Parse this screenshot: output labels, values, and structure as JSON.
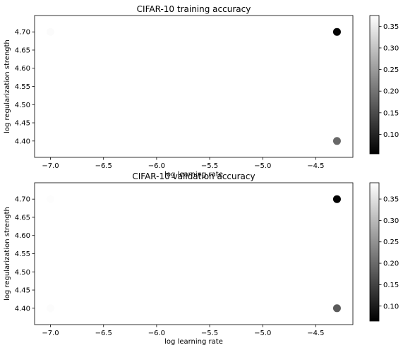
{
  "chart_data": [
    {
      "type": "scatter",
      "title": "CIFAR-10 training accuracy",
      "xlabel": "log learning rate",
      "ylabel": "log regularization strength",
      "xlim": [
        -7.15,
        -4.15
      ],
      "ylim": [
        4.355,
        4.745
      ],
      "xticks": [
        -7.0,
        -6.5,
        -6.0,
        -5.5,
        -5.0,
        -4.5
      ],
      "xtick_labels": [
        "−7.0",
        "−6.5",
        "−6.0",
        "−5.5",
        "−5.0",
        "−4.5"
      ],
      "yticks": [
        4.4,
        4.45,
        4.5,
        4.55,
        4.6,
        4.65,
        4.7
      ],
      "ytick_labels": [
        "4.40",
        "4.45",
        "4.50",
        "4.55",
        "4.60",
        "4.65",
        "4.70"
      ],
      "colormap": "gray",
      "color_range": [
        0.055,
        0.375
      ],
      "colorbar_ticks": [
        0.1,
        0.15,
        0.2,
        0.25,
        0.3,
        0.35
      ],
      "colorbar_tick_labels": [
        "0.10",
        "0.15",
        "0.20",
        "0.25",
        "0.30",
        "0.35"
      ],
      "points": [
        {
          "x": -7.0,
          "y": 4.7,
          "value": 0.37
        },
        {
          "x": -4.3,
          "y": 4.7,
          "value": 0.06
        },
        {
          "x": -7.0,
          "y": 4.4,
          "value": 0.375
        },
        {
          "x": -4.3,
          "y": 4.4,
          "value": 0.185
        }
      ],
      "grid": false
    },
    {
      "type": "scatter",
      "title": "CIFAR-10 validation accuracy",
      "xlabel": "log learning rate",
      "ylabel": "log regularization strength",
      "xlim": [
        -7.15,
        -4.15
      ],
      "ylim": [
        4.355,
        4.745
      ],
      "xticks": [
        -7.0,
        -6.5,
        -6.0,
        -5.5,
        -5.0,
        -4.5
      ],
      "xtick_labels": [
        "−7.0",
        "−6.5",
        "−6.0",
        "−5.5",
        "−5.0",
        "−4.5"
      ],
      "yticks": [
        4.4,
        4.45,
        4.5,
        4.55,
        4.6,
        4.65,
        4.7
      ],
      "ytick_labels": [
        "4.40",
        "4.45",
        "4.50",
        "4.55",
        "4.60",
        "4.65",
        "4.70"
      ],
      "colormap": "gray",
      "color_range": [
        0.065,
        0.388
      ],
      "colorbar_ticks": [
        0.1,
        0.15,
        0.2,
        0.25,
        0.3,
        0.35
      ],
      "colorbar_tick_labels": [
        "0.10",
        "0.15",
        "0.20",
        "0.25",
        "0.30",
        "0.35"
      ],
      "points": [
        {
          "x": -7.0,
          "y": 4.7,
          "value": 0.385
        },
        {
          "x": -4.3,
          "y": 4.7,
          "value": 0.067
        },
        {
          "x": -7.0,
          "y": 4.4,
          "value": 0.384
        },
        {
          "x": -4.3,
          "y": 4.4,
          "value": 0.18
        }
      ],
      "grid": false
    }
  ]
}
